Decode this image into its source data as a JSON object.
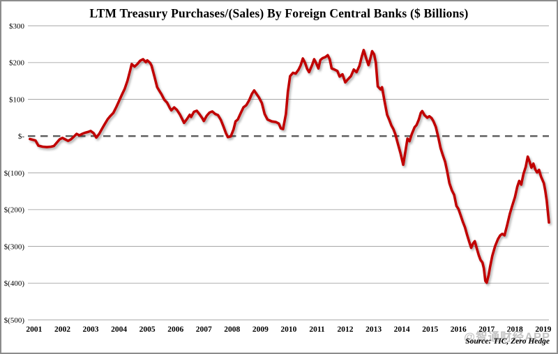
{
  "page": {
    "title": "LTM Treasury Purchases/(Sales) By Foreign Central Banks ($ Billions)",
    "source": "Source: TIC, Zero Hedge",
    "watermark": "@智通财经APP"
  },
  "colors": {
    "line": "#C00000",
    "gridline": "#A6A6A6",
    "zero_line": "#595959",
    "text": "#000000",
    "watermark": "#BFBFBF",
    "border": "#8C8C8C",
    "background": "#FFFFFF"
  },
  "chart_data": {
    "type": "line",
    "title": "LTM Treasury Purchases/(Sales) By Foreign Central Banks ($ Billions)",
    "xlabel": "",
    "ylabel": "",
    "legend": "none",
    "grid": "horizontal",
    "xlim": [
      2000.78,
      2019.2
    ],
    "ylim": [
      -500,
      300
    ],
    "xticks": [
      2001,
      2002,
      2003,
      2004,
      2005,
      2006,
      2007,
      2008,
      2009,
      2010,
      2011,
      2012,
      2013,
      2014,
      2015,
      2016,
      2017,
      2018,
      2019
    ],
    "yticks": [
      {
        "value": 300,
        "label": "$300"
      },
      {
        "value": 200,
        "label": "$200"
      },
      {
        "value": 100,
        "label": "$100"
      },
      {
        "value": 0,
        "label": "$-",
        "dashed": true
      },
      {
        "value": -100,
        "label": "$(100)"
      },
      {
        "value": -200,
        "label": "$(200)"
      },
      {
        "value": -300,
        "label": "$(300)"
      },
      {
        "value": -400,
        "label": "$(400)"
      },
      {
        "value": -500,
        "label": "$(500)"
      }
    ],
    "series": [
      {
        "name": "LTM Treasury Purchases/(Sales) by Foreign Central Banks",
        "color": "#C00000",
        "points": [
          [
            2000.85,
            -8
          ],
          [
            2000.95,
            -10
          ],
          [
            2001.05,
            -12
          ],
          [
            2001.15,
            -26
          ],
          [
            2001.3,
            -29
          ],
          [
            2001.45,
            -30
          ],
          [
            2001.6,
            -29
          ],
          [
            2001.7,
            -27
          ],
          [
            2001.8,
            -18
          ],
          [
            2001.9,
            -9
          ],
          [
            2002.0,
            -5
          ],
          [
            2002.1,
            -9
          ],
          [
            2002.2,
            -13
          ],
          [
            2002.3,
            -9
          ],
          [
            2002.4,
            -2
          ],
          [
            2002.5,
            6
          ],
          [
            2002.6,
            2
          ],
          [
            2002.7,
            6
          ],
          [
            2002.8,
            9
          ],
          [
            2002.9,
            11
          ],
          [
            2003.0,
            14
          ],
          [
            2003.1,
            8
          ],
          [
            2003.2,
            -4
          ],
          [
            2003.3,
            6
          ],
          [
            2003.4,
            20
          ],
          [
            2003.5,
            33
          ],
          [
            2003.6,
            46
          ],
          [
            2003.7,
            55
          ],
          [
            2003.8,
            63
          ],
          [
            2003.9,
            78
          ],
          [
            2004.0,
            95
          ],
          [
            2004.1,
            112
          ],
          [
            2004.2,
            128
          ],
          [
            2004.3,
            150
          ],
          [
            2004.4,
            180
          ],
          [
            2004.45,
            196
          ],
          [
            2004.55,
            189
          ],
          [
            2004.65,
            196
          ],
          [
            2004.75,
            205
          ],
          [
            2004.85,
            209
          ],
          [
            2004.95,
            201
          ],
          [
            2005.0,
            206
          ],
          [
            2005.1,
            199
          ],
          [
            2005.15,
            192
          ],
          [
            2005.25,
            163
          ],
          [
            2005.35,
            133
          ],
          [
            2005.45,
            120
          ],
          [
            2005.5,
            114
          ],
          [
            2005.6,
            99
          ],
          [
            2005.7,
            91
          ],
          [
            2005.8,
            76
          ],
          [
            2005.85,
            70
          ],
          [
            2005.95,
            78
          ],
          [
            2006.05,
            71
          ],
          [
            2006.15,
            59
          ],
          [
            2006.25,
            44
          ],
          [
            2006.3,
            36
          ],
          [
            2006.4,
            46
          ],
          [
            2006.5,
            58
          ],
          [
            2006.55,
            52
          ],
          [
            2006.65,
            66
          ],
          [
            2006.75,
            69
          ],
          [
            2006.85,
            59
          ],
          [
            2006.95,
            48
          ],
          [
            2007.0,
            41
          ],
          [
            2007.1,
            55
          ],
          [
            2007.2,
            64
          ],
          [
            2007.3,
            67
          ],
          [
            2007.4,
            60
          ],
          [
            2007.5,
            57
          ],
          [
            2007.6,
            44
          ],
          [
            2007.7,
            25
          ],
          [
            2007.78,
            8
          ],
          [
            2007.85,
            -3
          ],
          [
            2007.95,
            -1
          ],
          [
            2008.05,
            18
          ],
          [
            2008.12,
            40
          ],
          [
            2008.2,
            45
          ],
          [
            2008.3,
            62
          ],
          [
            2008.4,
            78
          ],
          [
            2008.5,
            84
          ],
          [
            2008.6,
            97
          ],
          [
            2008.7,
            115
          ],
          [
            2008.78,
            124
          ],
          [
            2008.85,
            116
          ],
          [
            2008.95,
            105
          ],
          [
            2009.05,
            90
          ],
          [
            2009.15,
            60
          ],
          [
            2009.25,
            45
          ],
          [
            2009.4,
            40
          ],
          [
            2009.55,
            38
          ],
          [
            2009.65,
            34
          ],
          [
            2009.72,
            21
          ],
          [
            2009.8,
            19
          ],
          [
            2009.9,
            60
          ],
          [
            2009.97,
            120
          ],
          [
            2010.05,
            163
          ],
          [
            2010.15,
            172
          ],
          [
            2010.25,
            170
          ],
          [
            2010.35,
            181
          ],
          [
            2010.42,
            192
          ],
          [
            2010.5,
            211
          ],
          [
            2010.58,
            199
          ],
          [
            2010.65,
            183
          ],
          [
            2010.72,
            174
          ],
          [
            2010.82,
            192
          ],
          [
            2010.9,
            209
          ],
          [
            2010.97,
            199
          ],
          [
            2011.05,
            184
          ],
          [
            2011.12,
            207
          ],
          [
            2011.2,
            212
          ],
          [
            2011.3,
            215
          ],
          [
            2011.38,
            220
          ],
          [
            2011.45,
            209
          ],
          [
            2011.52,
            184
          ],
          [
            2011.62,
            181
          ],
          [
            2011.72,
            177
          ],
          [
            2011.8,
            162
          ],
          [
            2011.9,
            168
          ],
          [
            2012.0,
            146
          ],
          [
            2012.1,
            155
          ],
          [
            2012.2,
            163
          ],
          [
            2012.3,
            181
          ],
          [
            2012.4,
            174
          ],
          [
            2012.5,
            191
          ],
          [
            2012.58,
            215
          ],
          [
            2012.65,
            234
          ],
          [
            2012.75,
            209
          ],
          [
            2012.82,
            193
          ],
          [
            2012.88,
            209
          ],
          [
            2012.95,
            231
          ],
          [
            2013.02,
            222
          ],
          [
            2013.08,
            200
          ],
          [
            2013.15,
            135
          ],
          [
            2013.25,
            127
          ],
          [
            2013.3,
            133
          ],
          [
            2013.38,
            98
          ],
          [
            2013.48,
            58
          ],
          [
            2013.55,
            45
          ],
          [
            2013.63,
            29
          ],
          [
            2013.7,
            19
          ],
          [
            2013.77,
            5
          ],
          [
            2013.85,
            -18
          ],
          [
            2013.95,
            -46
          ],
          [
            2014.05,
            -78
          ],
          [
            2014.13,
            -40
          ],
          [
            2014.2,
            -7
          ],
          [
            2014.27,
            -14
          ],
          [
            2014.35,
            5
          ],
          [
            2014.45,
            24
          ],
          [
            2014.52,
            30
          ],
          [
            2014.6,
            45
          ],
          [
            2014.67,
            63
          ],
          [
            2014.72,
            68
          ],
          [
            2014.8,
            57
          ],
          [
            2014.9,
            50
          ],
          [
            2014.97,
            54
          ],
          [
            2015.05,
            49
          ],
          [
            2015.12,
            40
          ],
          [
            2015.2,
            25
          ],
          [
            2015.28,
            0
          ],
          [
            2015.37,
            -33
          ],
          [
            2015.45,
            -52
          ],
          [
            2015.53,
            -70
          ],
          [
            2015.6,
            -95
          ],
          [
            2015.68,
            -128
          ],
          [
            2015.77,
            -148
          ],
          [
            2015.85,
            -160
          ],
          [
            2015.93,
            -190
          ],
          [
            2016.0,
            -198
          ],
          [
            2016.08,
            -216
          ],
          [
            2016.15,
            -232
          ],
          [
            2016.23,
            -248
          ],
          [
            2016.3,
            -267
          ],
          [
            2016.38,
            -287
          ],
          [
            2016.45,
            -304
          ],
          [
            2016.52,
            -292
          ],
          [
            2016.58,
            -286
          ],
          [
            2016.65,
            -306
          ],
          [
            2016.72,
            -324
          ],
          [
            2016.78,
            -337
          ],
          [
            2016.85,
            -344
          ],
          [
            2016.9,
            -360
          ],
          [
            2016.95,
            -394
          ],
          [
            2017.0,
            -399
          ],
          [
            2017.07,
            -378
          ],
          [
            2017.12,
            -356
          ],
          [
            2017.2,
            -325
          ],
          [
            2017.3,
            -299
          ],
          [
            2017.4,
            -280
          ],
          [
            2017.48,
            -270
          ],
          [
            2017.55,
            -266
          ],
          [
            2017.63,
            -270
          ],
          [
            2017.72,
            -243
          ],
          [
            2017.82,
            -211
          ],
          [
            2017.9,
            -190
          ],
          [
            2018.0,
            -166
          ],
          [
            2018.08,
            -138
          ],
          [
            2018.15,
            -122
          ],
          [
            2018.22,
            -132
          ],
          [
            2018.3,
            -103
          ],
          [
            2018.38,
            -84
          ],
          [
            2018.45,
            -56
          ],
          [
            2018.52,
            -70
          ],
          [
            2018.58,
            -86
          ],
          [
            2018.65,
            -75
          ],
          [
            2018.72,
            -91
          ],
          [
            2018.78,
            -99
          ],
          [
            2018.85,
            -92
          ],
          [
            2018.92,
            -110
          ],
          [
            2019.02,
            -128
          ],
          [
            2019.07,
            -148
          ],
          [
            2019.12,
            -175
          ],
          [
            2019.16,
            -205
          ],
          [
            2019.2,
            -235
          ]
        ]
      }
    ]
  }
}
